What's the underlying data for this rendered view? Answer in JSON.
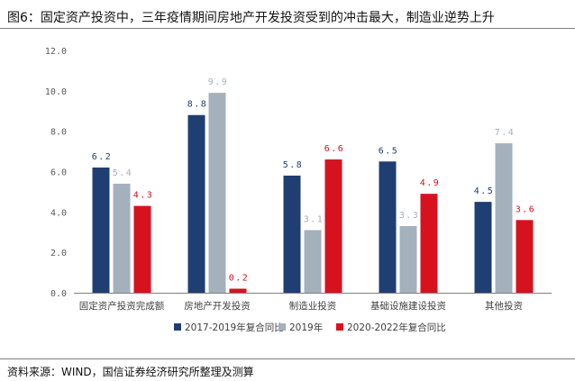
{
  "header": {
    "title": "图6：固定资产投资中，三年疫情期间房地产开发投资受到的冲击最大，制造业逆势上升"
  },
  "footer": {
    "source": "资料来源：WIND，国信证券经济研究所整理及测算"
  },
  "colors": {
    "series1": "#1f3f73",
    "series2": "#a5b0bd",
    "series3": "#d7121f",
    "label1": "#1f3f73",
    "label2": "#a5b0bd",
    "label3": "#d7121f",
    "axis": "#7f7f7f"
  },
  "chart_data": {
    "type": "bar",
    "title": "",
    "xlabel": "",
    "ylabel": "",
    "ylim": [
      0,
      12
    ],
    "yticks": [
      "0.0",
      "2.0",
      "4.0",
      "6.0",
      "8.0",
      "10.0",
      "12.0"
    ],
    "grid": false,
    "legend_position": "bottom",
    "categories": [
      "固定资产投资完成额",
      "房地产开发投资",
      "制造业投资",
      "基础设施建设投资",
      "其他投资"
    ],
    "series": [
      {
        "name": "2017-2019年复合同比",
        "values": [
          6.2,
          8.8,
          5.8,
          6.5,
          4.5
        ],
        "labels": [
          "6.2",
          "8.8",
          "5.8",
          "6.5",
          "4.5"
        ]
      },
      {
        "name": "2019年",
        "values": [
          5.4,
          9.9,
          3.1,
          3.3,
          7.4
        ],
        "labels": [
          "5.4",
          "9.9",
          "3.1",
          "3.3",
          "7.4"
        ]
      },
      {
        "name": "2020-2022年复合同比",
        "values": [
          4.3,
          0.2,
          6.6,
          4.9,
          3.6
        ],
        "labels": [
          "4.3",
          "0.2",
          "6.6",
          "4.9",
          "3.6"
        ]
      }
    ]
  }
}
